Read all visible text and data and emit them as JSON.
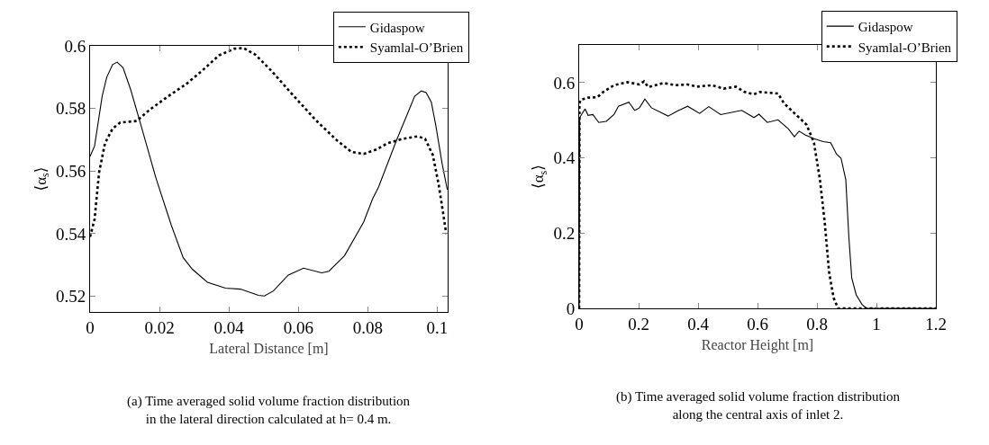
{
  "chart_data": [
    {
      "type": "line",
      "xlabel": "Lateral Distance [m]",
      "ylabel": "⟨α$_{s}$⟩",
      "xlim": [
        0,
        0.103
      ],
      "ylim": [
        0.515,
        0.6
      ],
      "xticks": [
        0,
        0.02,
        0.04,
        0.06,
        0.08,
        0.1
      ],
      "yticks": [
        0.52,
        0.54,
        0.56,
        0.58,
        0.6
      ],
      "grid": false,
      "legend": "top right",
      "marker": "none",
      "series": [
        {
          "name": "Gidaspow",
          "color": "#000000",
          "line_style": "solid",
          "x": [
            0,
            0.0013,
            0.0035,
            0.0048,
            0.0065,
            0.0078,
            0.0095,
            0.0117,
            0.0147,
            0.019,
            0.0234,
            0.0268,
            0.0294,
            0.0338,
            0.039,
            0.0433,
            0.0485,
            0.0502,
            0.0528,
            0.0571,
            0.0615,
            0.0667,
            0.0688,
            0.0733,
            0.0788,
            0.0814,
            0.0831,
            0.0883,
            0.0935,
            0.0954,
            0.0968,
            0.0983,
            0.0996,
            0.1014,
            0.1029
          ],
          "values": [
            0.5647,
            0.568,
            0.584,
            0.59,
            0.594,
            0.5948,
            0.593,
            0.586,
            0.5745,
            0.5577,
            0.5427,
            0.5324,
            0.5287,
            0.5245,
            0.5226,
            0.5223,
            0.5203,
            0.5201,
            0.5217,
            0.5268,
            0.529,
            0.5275,
            0.528,
            0.533,
            0.5437,
            0.5512,
            0.5549,
            0.5699,
            0.5839,
            0.5856,
            0.5851,
            0.582,
            0.5745,
            0.5624,
            0.554
          ]
        },
        {
          "name": "Syamlal-O’Brien",
          "color": "#000000",
          "line_style": "dotted",
          "x": [
            0,
            0.0013,
            0.0026,
            0.0043,
            0.0065,
            0.0087,
            0.0134,
            0.0173,
            0.0225,
            0.0277,
            0.032,
            0.0372,
            0.0416,
            0.0442,
            0.0476,
            0.052,
            0.058,
            0.0649,
            0.071,
            0.0753,
            0.0788,
            0.0827,
            0.0857,
            0.09,
            0.0944,
            0.0965,
            0.0987,
            0.1004,
            0.1017,
            0.1026
          ],
          "values": [
            0.539,
            0.5446,
            0.5596,
            0.5689,
            0.5736,
            0.5755,
            0.576,
            0.5797,
            0.5839,
            0.5878,
            0.5918,
            0.597,
            0.5991,
            0.5993,
            0.5972,
            0.5923,
            0.5848,
            0.5764,
            0.5699,
            0.5661,
            0.5655,
            0.567,
            0.5689,
            0.5703,
            0.5711,
            0.5703,
            0.5652,
            0.5558,
            0.5465,
            0.5399
          ]
        }
      ],
      "annotations": [
        "(a) Time averaged solid volume fraction distribution in the lateral direction calculated at h= 0.4 m."
      ]
    },
    {
      "type": "line",
      "xlabel": "Reactor Height [m]",
      "ylabel": "⟨α$_{s}$⟩",
      "xlim": [
        0,
        1.2
      ],
      "ylim": [
        0,
        0.7
      ],
      "xticks": [
        0,
        0.2,
        0.4,
        0.6,
        0.8,
        1,
        1.2
      ],
      "yticks": [
        0,
        0.2,
        0.4,
        0.6
      ],
      "grid": false,
      "legend": "top right",
      "marker": "none",
      "series": [
        {
          "name": "Gidaspow",
          "color": "#000000",
          "line_style": "solid",
          "x": [
            0,
            0.002,
            0.01,
            0.02,
            0.03,
            0.046,
            0.066,
            0.091,
            0.117,
            0.132,
            0.167,
            0.187,
            0.203,
            0.221,
            0.243,
            0.299,
            0.329,
            0.365,
            0.405,
            0.436,
            0.476,
            0.547,
            0.588,
            0.605,
            0.633,
            0.669,
            0.704,
            0.724,
            0.74,
            0.76,
            0.79,
            0.821,
            0.846,
            0.866,
            0.881,
            0.897,
            0.907,
            0.917,
            0.932,
            0.952,
            0.967,
            1.2
          ],
          "values": [
            0,
            0.507,
            0.518,
            0.53,
            0.513,
            0.515,
            0.494,
            0.497,
            0.515,
            0.537,
            0.548,
            0.526,
            0.533,
            0.556,
            0.533,
            0.511,
            0.524,
            0.537,
            0.518,
            0.536,
            0.515,
            0.526,
            0.507,
            0.516,
            0.494,
            0.501,
            0.477,
            0.456,
            0.471,
            0.461,
            0.451,
            0.443,
            0.44,
            0.41,
            0.399,
            0.342,
            0.193,
            0.081,
            0.036,
            0.01,
            0,
            0
          ]
        },
        {
          "name": "Syamlal-O’Brien",
          "color": "#000000",
          "line_style": "dotted",
          "x": [
            0,
            0.001,
            0.005,
            0.03,
            0.061,
            0.081,
            0.117,
            0.162,
            0.203,
            0.218,
            0.233,
            0.284,
            0.324,
            0.365,
            0.395,
            0.446,
            0.486,
            0.527,
            0.557,
            0.588,
            0.608,
            0.669,
            0.689,
            0.729,
            0.765,
            0.79,
            0.81,
            0.826,
            0.841,
            0.856,
            0.871,
            1.2
          ],
          "values": [
            0,
            0.545,
            0.554,
            0.56,
            0.561,
            0.575,
            0.593,
            0.601,
            0.595,
            0.603,
            0.588,
            0.599,
            0.593,
            0.595,
            0.589,
            0.593,
            0.584,
            0.589,
            0.575,
            0.569,
            0.575,
            0.571,
            0.545,
            0.515,
            0.488,
            0.44,
            0.342,
            0.23,
            0.095,
            0.028,
            0,
            0
          ]
        }
      ],
      "annotations": [
        "(b) Time averaged solid volume fraction distribution along the central axis of inlet 2."
      ]
    }
  ]
}
